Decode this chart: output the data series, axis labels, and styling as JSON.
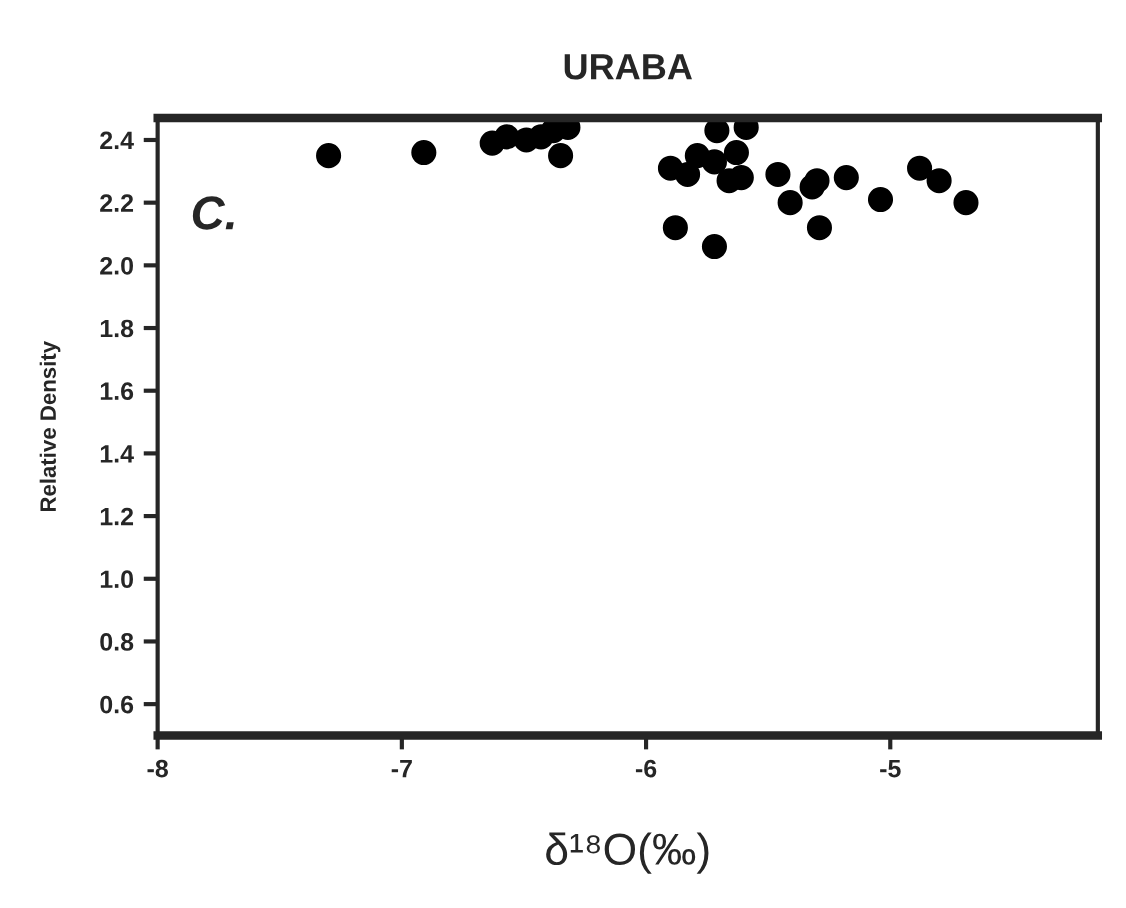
{
  "chart_data": {
    "type": "scatter",
    "title": "URABA",
    "xlabel": "δ¹⁸O(‰)",
    "ylabel": "Relative Density",
    "annotations": [
      "C."
    ],
    "x": [
      -7.3,
      -6.91,
      -6.63,
      -6.57,
      -6.49,
      -6.43,
      -6.38,
      -6.32,
      -6.35,
      -5.71,
      -5.59,
      -5.9,
      -5.83,
      -5.79,
      -5.72,
      -5.63,
      -5.66,
      -5.61,
      -5.88,
      -5.72,
      -5.46,
      -5.41,
      -5.32,
      -5.3,
      -5.29,
      -5.18,
      -5.04,
      -4.88,
      -4.8,
      -4.69
    ],
    "values": [
      2.35,
      2.36,
      2.39,
      2.41,
      2.4,
      2.41,
      2.43,
      2.44,
      2.35,
      2.43,
      2.44,
      2.31,
      2.29,
      2.35,
      2.33,
      2.36,
      2.27,
      2.28,
      2.12,
      2.06,
      2.29,
      2.2,
      2.25,
      2.27,
      2.12,
      2.28,
      2.21,
      2.31,
      2.27,
      2.2
    ],
    "color": "#000000",
    "marker": "circle",
    "xlim": [
      -8,
      -4.15
    ],
    "ylim": [
      0.5,
      2.47
    ],
    "xticks": [
      -8,
      -7,
      -6,
      -5
    ],
    "yticks": [
      0.6,
      0.8,
      {
        "value": 1,
        "label": "1.0"
      },
      1.2,
      1.4,
      1.6,
      1.8,
      {
        "value": 2,
        "label": "2.0"
      },
      2.2,
      2.4
    ],
    "grid": false,
    "legend": false
  }
}
